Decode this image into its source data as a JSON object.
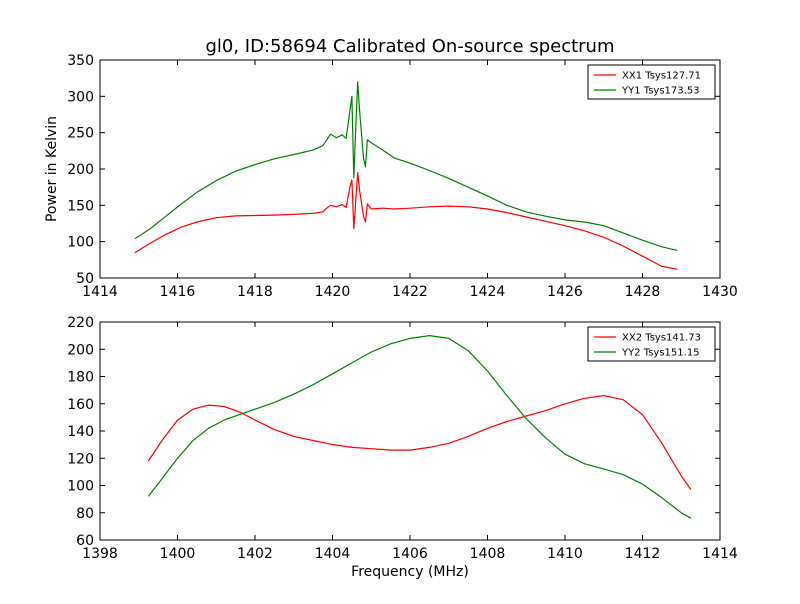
{
  "title": "gl0, ID:58694 Calibrated On-source spectrum",
  "chart_data": [
    {
      "type": "line",
      "ylabel": "Power in Kelvin",
      "xlabel": "",
      "xlim": [
        1414,
        1430
      ],
      "ylim": [
        50,
        350
      ],
      "xticks": [
        1414,
        1416,
        1418,
        1420,
        1422,
        1424,
        1426,
        1428,
        1430
      ],
      "yticks": [
        50,
        100,
        150,
        200,
        250,
        300,
        350
      ],
      "legend": "top-right",
      "series": [
        {
          "name": "XX1 Tsys127.71",
          "color": "#ff0000",
          "points": [
            [
              1414.9,
              85
            ],
            [
              1415.3,
              98
            ],
            [
              1415.7,
              110
            ],
            [
              1416.1,
              120
            ],
            [
              1416.5,
              127
            ],
            [
              1417.0,
              133
            ],
            [
              1417.5,
              135.5
            ],
            [
              1418.0,
              136
            ],
            [
              1418.5,
              136.5
            ],
            [
              1419.0,
              137.5
            ],
            [
              1419.5,
              139
            ],
            [
              1419.75,
              141
            ],
            [
              1419.85,
              146
            ],
            [
              1419.95,
              150
            ],
            [
              1420.1,
              148
            ],
            [
              1420.25,
              151
            ],
            [
              1420.35,
              147
            ],
            [
              1420.45,
              175
            ],
            [
              1420.5,
              185
            ],
            [
              1420.55,
              118
            ],
            [
              1420.6,
              155
            ],
            [
              1420.65,
              195
            ],
            [
              1420.7,
              170
            ],
            [
              1420.8,
              135
            ],
            [
              1420.85,
              127
            ],
            [
              1420.9,
              152
            ],
            [
              1421.0,
              145
            ],
            [
              1421.3,
              146
            ],
            [
              1421.6,
              145
            ],
            [
              1422.0,
              146
            ],
            [
              1422.5,
              148
            ],
            [
              1423.0,
              149
            ],
            [
              1423.5,
              148
            ],
            [
              1424.0,
              145
            ],
            [
              1424.5,
              140
            ],
            [
              1425.0,
              134
            ],
            [
              1425.5,
              128
            ],
            [
              1426.0,
              122
            ],
            [
              1426.5,
              115
            ],
            [
              1427.0,
              106
            ],
            [
              1427.5,
              94
            ],
            [
              1428.0,
              80
            ],
            [
              1428.5,
              66
            ],
            [
              1428.9,
              62
            ]
          ]
        },
        {
          "name": "YY1 Tsys173.53",
          "color": "#008000",
          "points": [
            [
              1414.9,
              104
            ],
            [
              1415.3,
              118
            ],
            [
              1415.7,
              135
            ],
            [
              1416.1,
              152
            ],
            [
              1416.5,
              168
            ],
            [
              1417.0,
              184
            ],
            [
              1417.5,
              197
            ],
            [
              1418.0,
              206
            ],
            [
              1418.5,
              214
            ],
            [
              1419.0,
              220
            ],
            [
              1419.5,
              226
            ],
            [
              1419.75,
              232
            ],
            [
              1419.85,
              240
            ],
            [
              1419.95,
              248
            ],
            [
              1420.1,
              243
            ],
            [
              1420.25,
              247
            ],
            [
              1420.35,
              242
            ],
            [
              1420.45,
              280
            ],
            [
              1420.5,
              300
            ],
            [
              1420.55,
              188
            ],
            [
              1420.6,
              255
            ],
            [
              1420.65,
              320
            ],
            [
              1420.7,
              280
            ],
            [
              1420.8,
              215
            ],
            [
              1420.85,
              203
            ],
            [
              1420.9,
              240
            ],
            [
              1421.0,
              236
            ],
            [
              1421.3,
              226
            ],
            [
              1421.6,
              215
            ],
            [
              1422.0,
              208
            ],
            [
              1422.5,
              198
            ],
            [
              1423.0,
              187
            ],
            [
              1423.5,
              175
            ],
            [
              1424.0,
              163
            ],
            [
              1424.5,
              150
            ],
            [
              1425.0,
              141
            ],
            [
              1425.5,
              135
            ],
            [
              1426.0,
              130
            ],
            [
              1426.5,
              127
            ],
            [
              1427.0,
              122
            ],
            [
              1427.5,
              112
            ],
            [
              1428.0,
              102
            ],
            [
              1428.5,
              93
            ],
            [
              1428.9,
              88
            ]
          ]
        }
      ]
    },
    {
      "type": "line",
      "xlabel": "Frequency (MHz)",
      "ylabel": "",
      "xlim": [
        1398,
        1414
      ],
      "ylim": [
        60,
        220
      ],
      "xticks": [
        1398,
        1400,
        1402,
        1404,
        1406,
        1408,
        1410,
        1412,
        1414
      ],
      "yticks": [
        60,
        80,
        100,
        120,
        140,
        160,
        180,
        200,
        220
      ],
      "legend": "top-right",
      "series": [
        {
          "name": "XX2 Tsys141.73",
          "color": "#ff0000",
          "points": [
            [
              1399.25,
              118
            ],
            [
              1399.6,
              133
            ],
            [
              1400.0,
              148
            ],
            [
              1400.4,
              156
            ],
            [
              1400.8,
              159
            ],
            [
              1401.2,
              158
            ],
            [
              1401.6,
              154
            ],
            [
              1402.0,
              148
            ],
            [
              1402.5,
              141
            ],
            [
              1403.0,
              136
            ],
            [
              1403.5,
              133
            ],
            [
              1404.0,
              130
            ],
            [
              1404.5,
              128
            ],
            [
              1405.0,
              127
            ],
            [
              1405.5,
              126
            ],
            [
              1406.0,
              126
            ],
            [
              1406.5,
              128
            ],
            [
              1407.0,
              131
            ],
            [
              1407.5,
              136
            ],
            [
              1408.0,
              142
            ],
            [
              1408.5,
              147
            ],
            [
              1409.0,
              151
            ],
            [
              1409.5,
              155
            ],
            [
              1410.0,
              160
            ],
            [
              1410.5,
              164
            ],
            [
              1411.0,
              166
            ],
            [
              1411.5,
              163
            ],
            [
              1412.0,
              152
            ],
            [
              1412.5,
              131
            ],
            [
              1413.0,
              107
            ],
            [
              1413.25,
              97
            ]
          ]
        },
        {
          "name": "YY2 Tsys151.15",
          "color": "#008000",
          "points": [
            [
              1399.25,
              92
            ],
            [
              1399.6,
              105
            ],
            [
              1400.0,
              120
            ],
            [
              1400.4,
              133
            ],
            [
              1400.8,
              142
            ],
            [
              1401.2,
              148
            ],
            [
              1401.6,
              152
            ],
            [
              1402.0,
              156
            ],
            [
              1402.5,
              161
            ],
            [
              1403.0,
              167
            ],
            [
              1403.5,
              174
            ],
            [
              1404.0,
              182
            ],
            [
              1404.5,
              190
            ],
            [
              1405.0,
              198
            ],
            [
              1405.5,
              204
            ],
            [
              1406.0,
              208
            ],
            [
              1406.5,
              210
            ],
            [
              1407.0,
              208
            ],
            [
              1407.5,
              199
            ],
            [
              1408.0,
              184
            ],
            [
              1408.5,
              166
            ],
            [
              1409.0,
              149
            ],
            [
              1409.5,
              135
            ],
            [
              1410.0,
              123
            ],
            [
              1410.5,
              116
            ],
            [
              1411.0,
              112
            ],
            [
              1411.5,
              108
            ],
            [
              1412.0,
              101
            ],
            [
              1412.5,
              91
            ],
            [
              1413.0,
              80
            ],
            [
              1413.25,
              76
            ]
          ]
        }
      ]
    }
  ]
}
